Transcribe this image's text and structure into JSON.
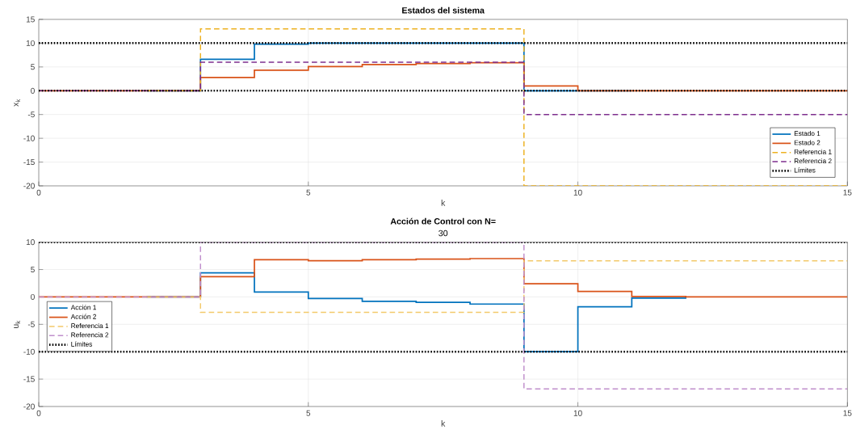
{
  "chart_data": [
    {
      "type": "step",
      "title": "Estados del sistema",
      "xlabel": "k",
      "ylabel": "x$_{k}$",
      "x": [
        0,
        1,
        2,
        3,
        4,
        5,
        6,
        7,
        8,
        9,
        10,
        11,
        12,
        13,
        14,
        15
      ],
      "xlim": [
        0,
        15
      ],
      "ylim": [
        -20,
        15
      ],
      "xticks": [
        0,
        5,
        10,
        15
      ],
      "yticks": [
        -20,
        -15,
        -10,
        -5,
        0,
        5,
        10,
        15
      ],
      "grid": true,
      "legend": "bottom right",
      "series": [
        {
          "name": "Estado 1",
          "color": "#0072bd",
          "line_style": "solid",
          "values": [
            null,
            null,
            0,
            6.6,
            9.8,
            10,
            10,
            10,
            10,
            0,
            0,
            0,
            null,
            null,
            null,
            null
          ]
        },
        {
          "name": "Estado 2",
          "color": "#d95319",
          "line_style": "solid",
          "values": [
            0,
            0,
            0,
            2.8,
            4.3,
            5.1,
            5.5,
            5.7,
            5.9,
            1.0,
            0,
            0,
            0,
            0,
            0,
            0
          ]
        },
        {
          "name": "Referencia 1",
          "color": "#edb120",
          "line_style": "dashed",
          "values": [
            null,
            null,
            0,
            13,
            13,
            13,
            13,
            13,
            13,
            -20,
            -20,
            -20,
            -20,
            -20,
            -20,
            -20
          ]
        },
        {
          "name": "Referencia 2",
          "color": "#7e2f8e",
          "line_style": "dashed",
          "values": [
            0,
            0,
            0,
            6,
            6,
            6,
            6,
            6,
            6,
            -5,
            -5,
            -5,
            -5,
            -5,
            -5,
            -5
          ]
        },
        {
          "name": "Límites",
          "type": "line",
          "color": "#000000",
          "line_style": "dotted",
          "x": [
            0,
            15
          ],
          "values": [
            10,
            10
          ]
        },
        {
          "type": "line",
          "color": "#000000",
          "line_style": "dotted",
          "x": [
            0,
            15
          ],
          "values": [
            0,
            0
          ]
        }
      ]
    },
    {
      "type": "step",
      "title": "Acción de Control con N=",
      "subtitle": "30",
      "xlabel": "k",
      "ylabel": "u$_{k}$",
      "x": [
        0,
        1,
        2,
        3,
        4,
        5,
        6,
        7,
        8,
        9,
        10,
        11,
        12,
        13,
        14,
        15
      ],
      "xlim": [
        0,
        15
      ],
      "ylim": [
        -20,
        10
      ],
      "xticks": [
        0,
        5,
        10,
        15
      ],
      "yticks": [
        -20,
        -15,
        -10,
        -5,
        0,
        5,
        10
      ],
      "grid": true,
      "legend": "left",
      "series": [
        {
          "name": "Acción 1",
          "color": "#0072bd",
          "line_style": "solid",
          "x": [
            2,
            3,
            4,
            5,
            6,
            7,
            8,
            9,
            10,
            11,
            12
          ],
          "values": [
            0,
            4.4,
            0.9,
            -0.3,
            -0.8,
            -1.0,
            -1.3,
            -10,
            -1.8,
            -0.2,
            -0.1
          ]
        },
        {
          "name": "Acción 2",
          "color": "#d95319",
          "line_style": "solid",
          "values": [
            0,
            0,
            0,
            3.7,
            6.8,
            6.6,
            6.8,
            6.9,
            7.0,
            2.4,
            1.0,
            0.1,
            0,
            0,
            0,
            0
          ]
        },
        {
          "name": "Referencia 1",
          "color": "#f3c96a",
          "line_style": "dashed",
          "values": [
            null,
            null,
            0,
            -2.8,
            -2.8,
            -2.8,
            -2.8,
            -2.8,
            -2.8,
            6.6,
            6.6,
            6.6,
            6.6,
            6.6,
            6.6,
            6.6
          ]
        },
        {
          "name": "Referencia 2",
          "color": "#c08fcc",
          "line_style": "dashed",
          "values": [
            0,
            0,
            0,
            10,
            10,
            10,
            10,
            10,
            10,
            -16.8,
            -16.8,
            -16.8,
            -16.8,
            -16.8,
            -16.8,
            -16.8
          ]
        }
      ],
      "ref_lines": [
        {
          "axis": "y",
          "value": 10,
          "label": "Límites",
          "color": "#000000",
          "line_style": "dotted"
        },
        {
          "axis": "y",
          "value": -10,
          "color": "#000000",
          "line_style": "dotted"
        }
      ]
    }
  ]
}
